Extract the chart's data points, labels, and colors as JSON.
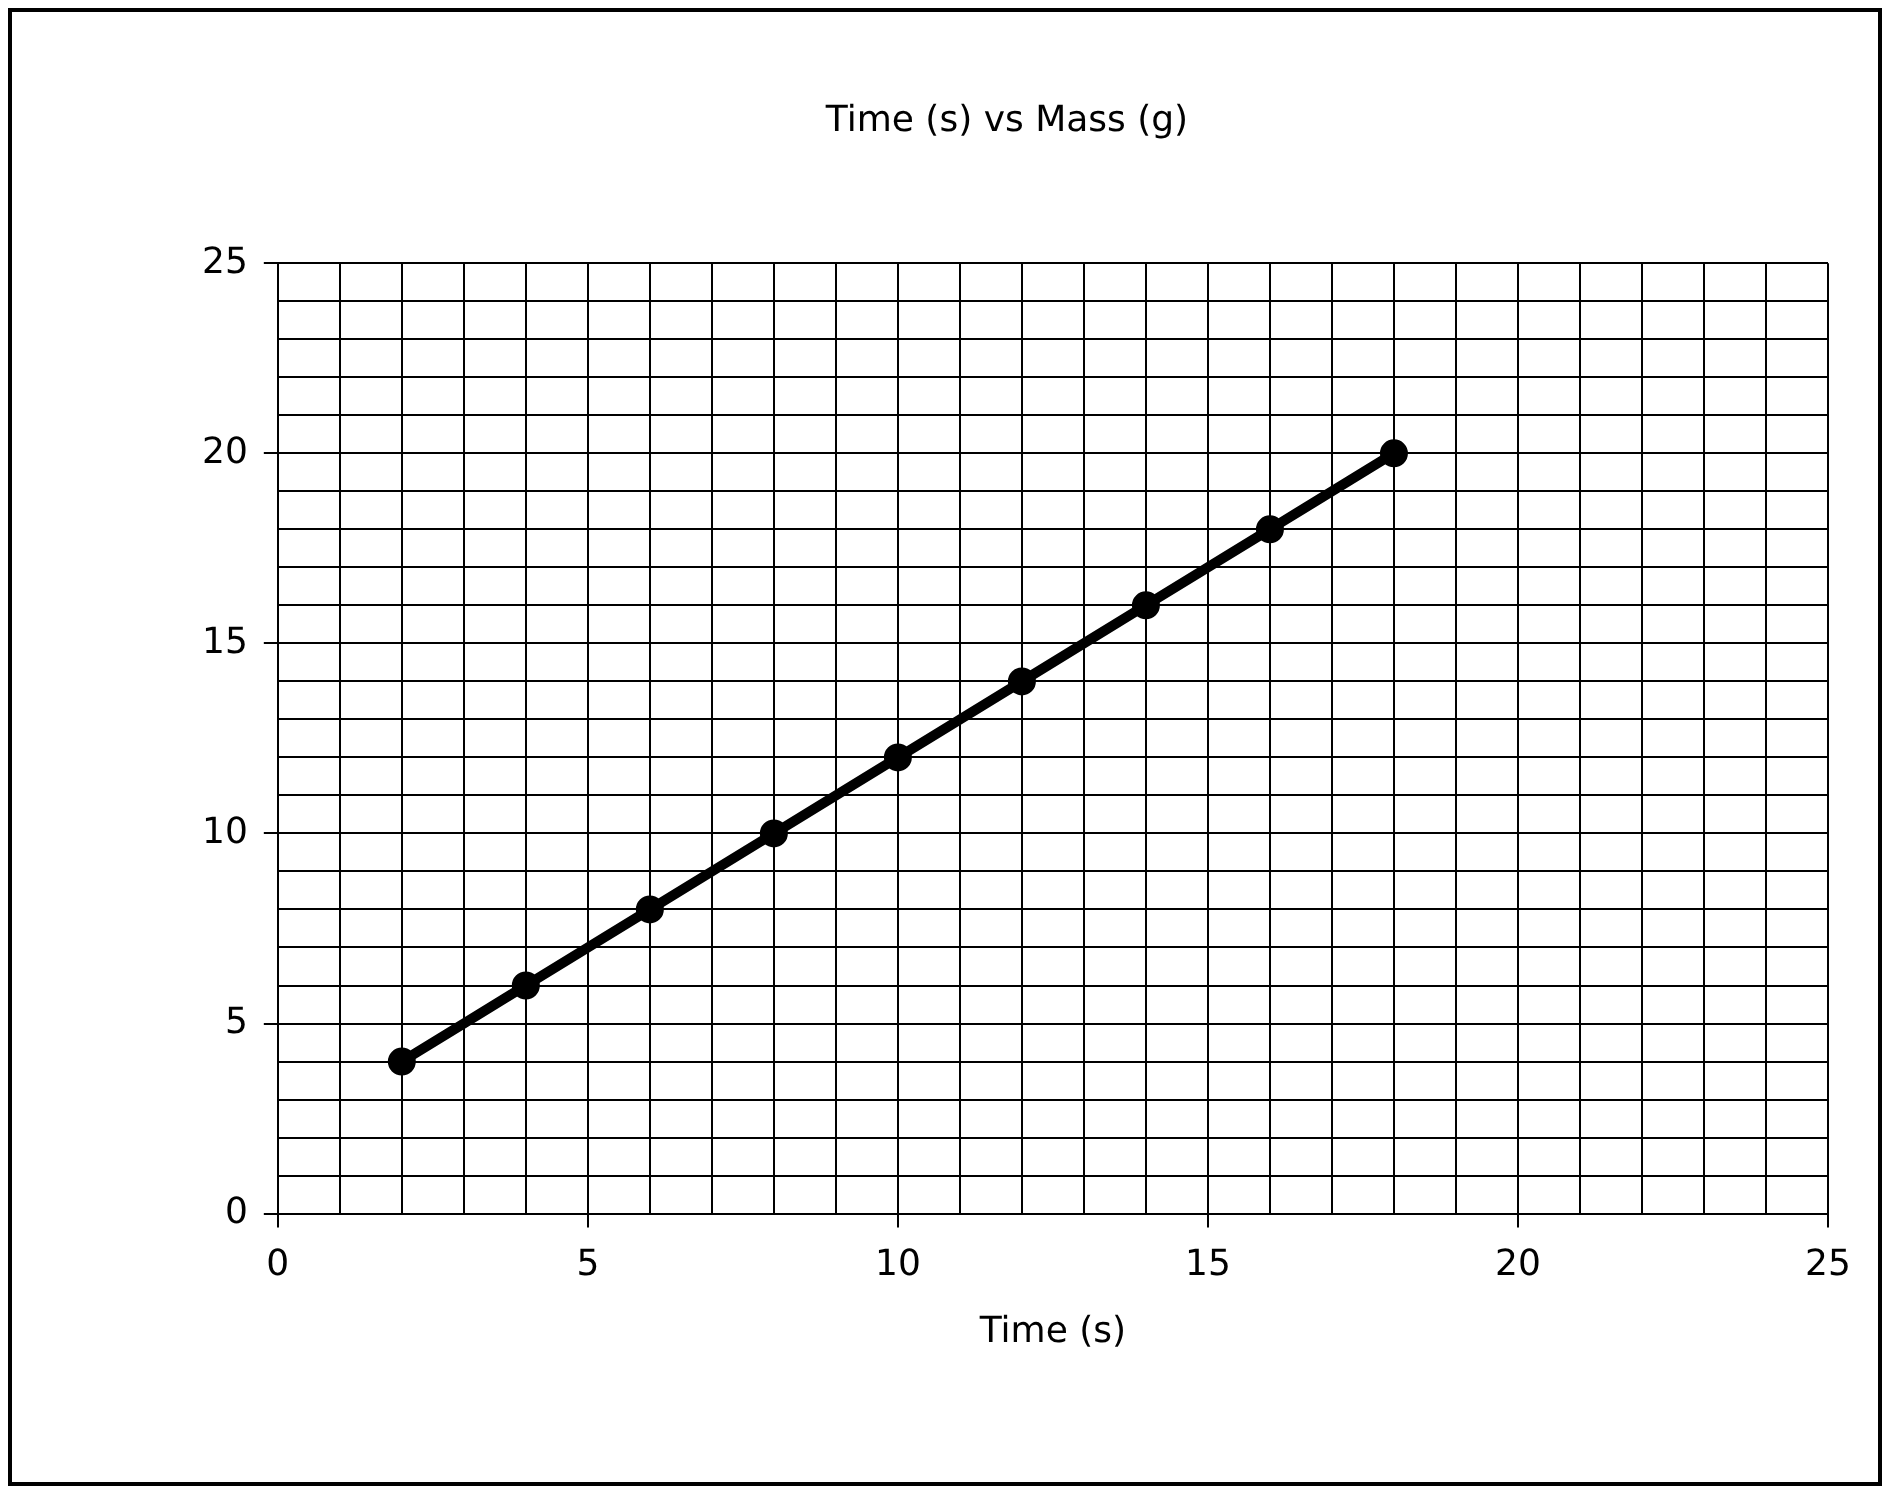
{
  "chart_data": {
    "type": "line",
    "title": "Time (s) vs Mass (g)",
    "xlabel": "Time (s)",
    "x": [
      2,
      4,
      6,
      8,
      10,
      12,
      14,
      16,
      18
    ],
    "series": [
      {
        "color": "#000000",
        "values": [
          4,
          6,
          8,
          10,
          12,
          14,
          16,
          18,
          20
        ]
      }
    ],
    "xlim": [
      0,
      25
    ],
    "xticks": [
      0,
      {
        "value": 1,
        "label": null
      },
      {
        "value": 2,
        "label": null
      },
      {
        "value": 3,
        "label": null
      },
      {
        "value": 4,
        "label": null
      },
      5,
      {
        "value": 6,
        "label": null
      },
      {
        "value": 7,
        "label": null
      },
      {
        "value": 8,
        "label": null
      },
      {
        "value": 9,
        "label": null
      },
      10,
      {
        "value": 11,
        "label": null
      },
      {
        "value": 12,
        "label": null
      },
      {
        "value": 13,
        "label": null
      },
      {
        "value": 14,
        "label": null
      },
      15,
      {
        "value": 16,
        "label": null
      },
      {
        "value": 17,
        "label": null
      },
      {
        "value": 18,
        "label": null
      },
      {
        "value": 19,
        "label": null
      },
      20,
      {
        "value": 21,
        "label": null
      },
      {
        "value": 22,
        "label": null
      },
      {
        "value": 23,
        "label": null
      },
      {
        "value": 24,
        "label": null
      },
      25
    ],
    "ylim": [
      0,
      25
    ],
    "yticks": [
      0,
      {
        "value": 1,
        "label": null
      },
      {
        "value": 2,
        "label": null
      },
      {
        "value": 3,
        "label": null
      },
      {
        "value": 4,
        "label": null
      },
      5,
      {
        "value": 6,
        "label": null
      },
      {
        "value": 7,
        "label": null
      },
      {
        "value": 8,
        "label": null
      },
      {
        "value": 9,
        "label": null
      },
      10,
      {
        "value": 11,
        "label": null
      },
      {
        "value": 12,
        "label": null
      },
      {
        "value": 13,
        "label": null
      },
      {
        "value": 14,
        "label": null
      },
      15,
      {
        "value": 16,
        "label": null
      },
      {
        "value": 17,
        "label": null
      },
      {
        "value": 18,
        "label": null
      },
      {
        "value": 19,
        "label": null
      },
      20,
      {
        "value": 21,
        "label": null
      },
      {
        "value": 22,
        "label": null
      },
      {
        "value": 23,
        "label": null
      },
      {
        "value": 24,
        "label": null
      },
      25
    ],
    "grid": true,
    "legend": false,
    "marker": "circle",
    "line_style": "solid"
  }
}
